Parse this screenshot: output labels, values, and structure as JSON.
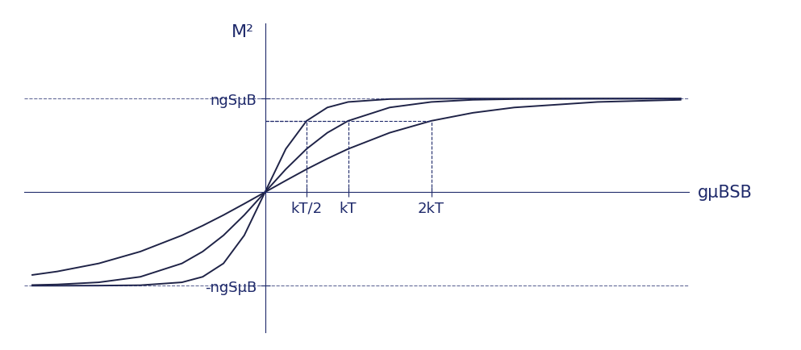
{
  "chart_data": {
    "type": "line",
    "x_label": "gμBSB",
    "y_label": "M²",
    "x": [
      -2.8,
      -2.5,
      -2,
      -1.5,
      -1,
      -0.75,
      -0.5,
      -0.25,
      0,
      0.25,
      0.5,
      0.75,
      1,
      1.5,
      2,
      2.5,
      3,
      4,
      5
    ],
    "series": [
      {
        "color": "#1f2347",
        "values": [
          -1.0,
          -1.0,
          -0.999,
          -0.995,
          -0.964,
          -0.905,
          -0.762,
          -0.462,
          0,
          0.462,
          0.762,
          0.905,
          0.964,
          0.995,
          0.999,
          1.0,
          1.0,
          1.0,
          1.0
        ]
      },
      {
        "color": "#1f2347",
        "values": [
          -0.993,
          -0.987,
          -0.964,
          -0.905,
          -0.762,
          -0.635,
          -0.462,
          -0.245,
          0,
          0.245,
          0.462,
          0.635,
          0.762,
          0.905,
          0.964,
          0.987,
          0.995,
          0.999,
          1.0
        ]
      },
      {
        "color": "#1f2347",
        "values": [
          -0.885,
          -0.848,
          -0.762,
          -0.635,
          -0.462,
          -0.358,
          -0.245,
          -0.124,
          0,
          0.124,
          0.245,
          0.358,
          0.462,
          0.635,
          0.762,
          0.848,
          0.905,
          0.964,
          0.987
        ]
      }
    ],
    "xlim": [
      -2.9,
      5.1
    ],
    "ylim": [
      -1.5,
      1.8
    ],
    "xticks": [
      {
        "value": 0.5,
        "label": "kT/2"
      },
      {
        "value": 1,
        "label": "kT"
      },
      {
        "value": 2,
        "label": "2kT"
      }
    ],
    "yticks": [
      {
        "value": -1,
        "label": "-ngSμB"
      },
      {
        "value": 1,
        "label": "ngSμB"
      }
    ],
    "grid": false
  }
}
